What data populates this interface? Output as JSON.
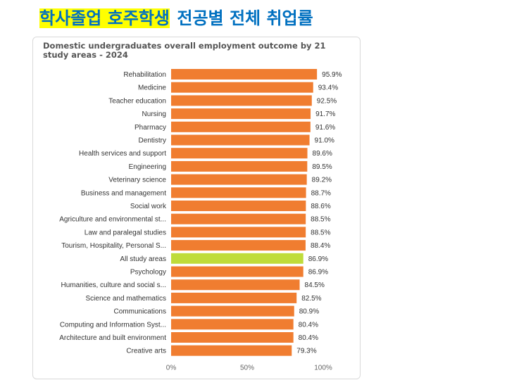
{
  "slide": {
    "title_highlight": "학사졸업 호주학생",
    "title_rest": "전공별 전체 취업률"
  },
  "chart_data": {
    "type": "bar",
    "orientation": "horizontal",
    "title": "Domestic undergraduates overall employment outcome by 21 study areas - 2024",
    "categories": [
      "Rehabilitation",
      "Medicine",
      "Teacher education",
      "Nursing",
      "Pharmacy",
      "Dentistry",
      "Health services and support",
      "Engineering",
      "Veterinary science",
      "Business and management",
      "Social work",
      "Agriculture and environmental st...",
      "Law and paralegal studies",
      "Tourism, Hospitality, Personal S...",
      "All study areas",
      "Psychology",
      "Humanities, culture and social s...",
      "Science and mathematics",
      "Communications",
      "Computing and Information Syst...",
      "Architecture and built environment",
      "Creative arts"
    ],
    "values": [
      95.9,
      93.4,
      92.5,
      91.7,
      91.6,
      91.0,
      89.6,
      89.5,
      89.2,
      88.7,
      88.6,
      88.5,
      88.5,
      88.4,
      86.9,
      86.9,
      84.5,
      82.5,
      80.9,
      80.4,
      80.4,
      79.3
    ],
    "value_labels": [
      "95.9%",
      "93.4%",
      "92.5%",
      "91.7%",
      "91.6%",
      "91.0%",
      "89.6%",
      "89.5%",
      "89.2%",
      "88.7%",
      "88.6%",
      "88.5%",
      "88.5%",
      "88.4%",
      "86.9%",
      "86.9%",
      "84.5%",
      "82.5%",
      "80.9%",
      "80.4%",
      "80.4%",
      "79.3%"
    ],
    "highlight_category": "All study areas",
    "colors": {
      "bar": "#f07d30",
      "highlight": "#bfdc3a"
    },
    "xlim": [
      0,
      100
    ],
    "x_ticks": [
      "0%",
      "50%",
      "100%"
    ],
    "grid": false
  }
}
